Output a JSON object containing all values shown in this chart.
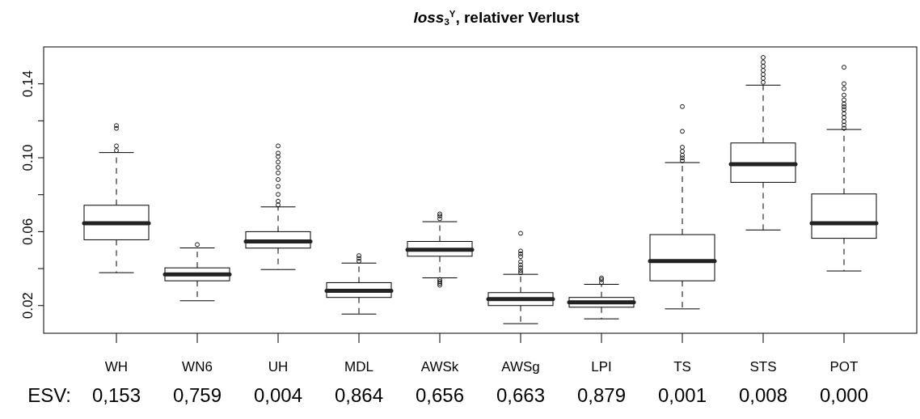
{
  "chart_data": {
    "type": "box",
    "title": "loss$_{3}$$^{Y}$, relativer Verlust",
    "categories": [
      "WH",
      "WN6",
      "UH",
      "MDL",
      "AWSk",
      "AWSg",
      "LPI",
      "TS",
      "STS",
      "POT"
    ],
    "boxes": [
      {
        "low": 0.0378,
        "q1": 0.0556,
        "median": 0.0645,
        "q3": 0.0743,
        "high": 0.1028,
        "outliers": [
          0.1174,
          0.1159,
          0.1064,
          0.1039
        ]
      },
      {
        "low": 0.0226,
        "q1": 0.0334,
        "median": 0.0368,
        "q3": 0.0404,
        "high": 0.0512,
        "outliers": [
          0.053
        ]
      },
      {
        "low": 0.0395,
        "q1": 0.0511,
        "median": 0.0547,
        "q3": 0.06,
        "high": 0.0734,
        "outliers": [
          0.1064,
          0.1025,
          0.1006,
          0.0977,
          0.0948,
          0.0918,
          0.0882,
          0.0845,
          0.0802,
          0.0765,
          0.0745
        ]
      },
      {
        "low": 0.0154,
        "q1": 0.0244,
        "median": 0.028,
        "q3": 0.0324,
        "high": 0.043,
        "outliers": [
          0.044,
          0.0455,
          0.047
        ]
      },
      {
        "low": 0.035,
        "q1": 0.0467,
        "median": 0.0502,
        "q3": 0.0547,
        "high": 0.0654,
        "outliers": [
          0.0696,
          0.0685,
          0.067,
          0.034,
          0.033,
          0.032,
          0.031
        ]
      },
      {
        "low": 0.0102,
        "q1": 0.02,
        "median": 0.0235,
        "q3": 0.027,
        "high": 0.0369,
        "outliers": [
          0.0591,
          0.0495,
          0.048,
          0.0465,
          0.0437,
          0.042,
          0.0405,
          0.039,
          0.0378
        ]
      },
      {
        "low": 0.0128,
        "q1": 0.0191,
        "median": 0.0218,
        "q3": 0.0244,
        "high": 0.0315,
        "outliers": [
          0.0349,
          0.034,
          0.0325
        ]
      },
      {
        "low": 0.0182,
        "q1": 0.0334,
        "median": 0.0441,
        "q3": 0.0584,
        "high": 0.0974,
        "outliers": [
          0.1277,
          0.1143,
          0.1057,
          0.1035,
          0.1014,
          0.0999,
          0.0984
        ]
      },
      {
        "low": 0.0609,
        "q1": 0.0867,
        "median": 0.0965,
        "q3": 0.108,
        "high": 0.1393,
        "outliers": [
          0.1543,
          0.1517,
          0.1495,
          0.1473,
          0.1451,
          0.143,
          0.1408
        ]
      },
      {
        "low": 0.0387,
        "q1": 0.0564,
        "median": 0.0645,
        "q3": 0.0804,
        "high": 0.1153,
        "outliers": [
          0.149,
          0.1401,
          0.1374,
          0.1339,
          0.1313,
          0.1291,
          0.1276,
          0.1261,
          0.1239,
          0.1218,
          0.1196,
          0.1177,
          0.116
        ]
      }
    ],
    "ylim": [
      0.005,
      0.16
    ],
    "yticks": [
      0.02,
      {
        "value": 0.04,
        "label": null
      },
      0.06,
      {
        "value": 0.08,
        "label": null
      },
      {
        "value": 0.1,
        "label": "0.10"
      },
      {
        "value": 0.12,
        "label": null
      },
      0.14
    ],
    "annotations": [
      "ESV:",
      "0,153",
      "0,759",
      "0,004",
      "0,864",
      "0,656",
      "0,663",
      "0,879",
      "0,001",
      "0,008",
      "0,000"
    ]
  }
}
